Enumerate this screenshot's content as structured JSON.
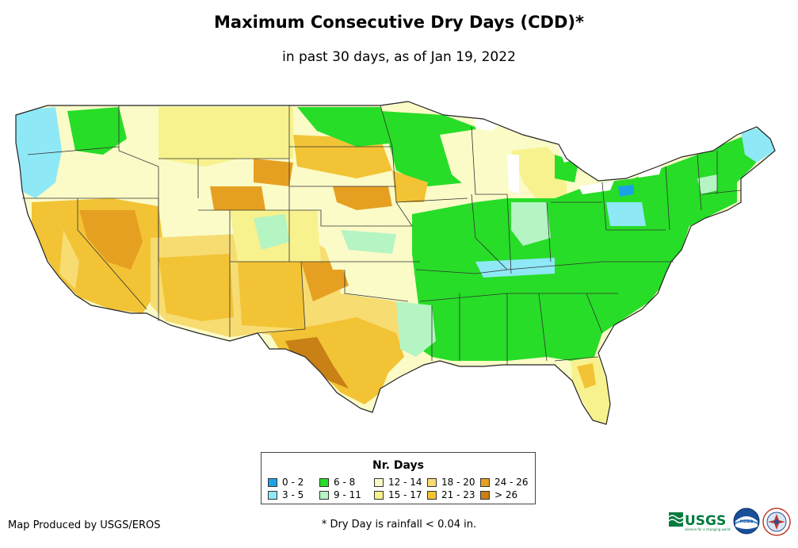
{
  "title": "Maximum Consecutive Dry Days (CDD)*",
  "subtitle": "in past 30 days, as of Jan 19, 2022",
  "legend": {
    "title": "Nr. Days",
    "classes": [
      {
        "label": "0 - 2",
        "color": "#1ca3e6"
      },
      {
        "label": "3 - 5",
        "color": "#8fe8f6"
      },
      {
        "label": "6 - 8",
        "color": "#27dd27"
      },
      {
        "label": "9 - 11",
        "color": "#b5f4c3"
      },
      {
        "label": "12 - 14",
        "color": "#fbfbc8"
      },
      {
        "label": "15 - 17",
        "color": "#f7f28d"
      },
      {
        "label": "18 - 20",
        "color": "#f7dc72"
      },
      {
        "label": "21 - 23",
        "color": "#f2c335"
      },
      {
        "label": "24 - 26",
        "color": "#e6a021"
      },
      {
        "label": "> 26",
        "color": "#c98015"
      }
    ]
  },
  "credit": "Map Produced by USGS/EROS",
  "footnote": "* Dry Day is rainfall < 0.04 in.",
  "logos": {
    "usgs_text": "USGS",
    "usgs_tagline": "science for a changing world",
    "noaa_text": "noaa"
  }
}
